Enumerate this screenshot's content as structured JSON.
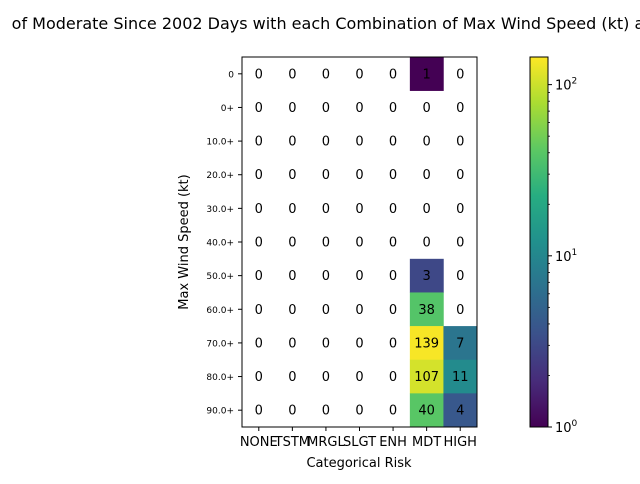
{
  "chart_data": {
    "type": "heatmap",
    "title": "of Moderate Since 2002 Days with each Combination of Max Wind Speed (kt) a",
    "xlabel": "Categorical Risk",
    "ylabel": "Max Wind Speed (kt)",
    "x_categories": [
      "NONE",
      "TSTM",
      "MRGL",
      "SLGT",
      "ENH",
      "MDT",
      "HIGH"
    ],
    "y_categories": [
      "0",
      "0+",
      "10.0+",
      "20.0+",
      "30.0+",
      "40.0+",
      "50.0+",
      "60.0+",
      "70.0+",
      "80.0+",
      "90.0+"
    ],
    "values": [
      [
        0,
        0,
        0,
        0,
        0,
        1,
        0
      ],
      [
        0,
        0,
        0,
        0,
        0,
        0,
        0
      ],
      [
        0,
        0,
        0,
        0,
        0,
        0,
        0
      ],
      [
        0,
        0,
        0,
        0,
        0,
        0,
        0
      ],
      [
        0,
        0,
        0,
        0,
        0,
        0,
        0
      ],
      [
        0,
        0,
        0,
        0,
        0,
        0,
        0
      ],
      [
        0,
        0,
        0,
        0,
        0,
        3,
        0
      ],
      [
        0,
        0,
        0,
        0,
        0,
        38,
        0
      ],
      [
        0,
        0,
        0,
        0,
        0,
        139,
        7
      ],
      [
        0,
        0,
        0,
        0,
        0,
        107,
        11
      ],
      [
        0,
        0,
        0,
        0,
        0,
        40,
        4
      ]
    ],
    "colorscale": "viridis",
    "color_scale_type": "log",
    "color_range": [
      1,
      145
    ],
    "zero_cells": "blank",
    "colorbar": {
      "ticks": [
        {
          "value": 1,
          "base": "10",
          "exp": "0"
        },
        {
          "value": 10,
          "base": "10",
          "exp": "1"
        },
        {
          "value": 100,
          "base": "10",
          "exp": "2"
        }
      ]
    }
  }
}
